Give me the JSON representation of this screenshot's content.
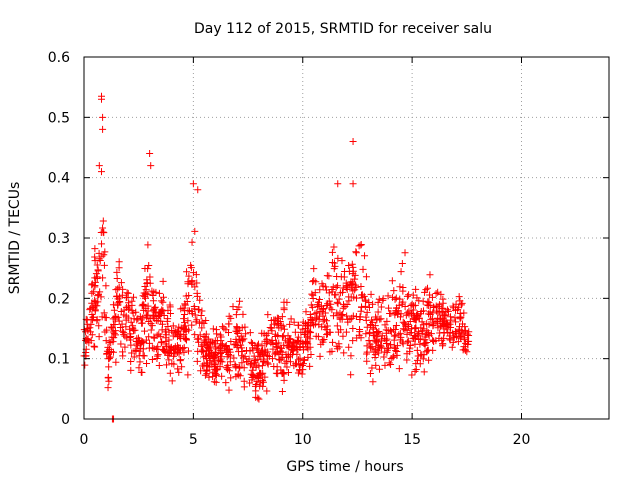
{
  "chart_data": {
    "type": "scatter",
    "title": "Day 112 of 2015, SRMTID for receiver salu",
    "xlabel": "GPS time / hours",
    "ylabel": "SRMTID / TECUs",
    "xlim": [
      0,
      24
    ],
    "ylim": [
      0,
      0.6
    ],
    "xticks": [
      0,
      5,
      10,
      15,
      20
    ],
    "xtick_labels": [
      "0",
      "5",
      "10",
      "15",
      "20"
    ],
    "yticks": [
      0,
      0.1,
      0.2,
      0.3,
      0.4,
      0.5,
      0.6
    ],
    "ytick_labels": [
      "0",
      "0.1",
      "0.2",
      "0.3",
      "0.4",
      "0.5",
      "0.6"
    ],
    "grid": true,
    "marker": "+",
    "marker_color": "#ff0000",
    "series": [
      {
        "name": "SRMTID",
        "x_range_hours": [
          0,
          17.6
        ],
        "envelope": [
          {
            "x": 0.0,
            "lo": 0.06,
            "hi": 0.18
          },
          {
            "x": 0.5,
            "lo": 0.08,
            "hi": 0.33
          },
          {
            "x": 0.9,
            "lo": 0.1,
            "hi": 0.42
          },
          {
            "x": 1.1,
            "lo": 0.03,
            "hi": 0.15
          },
          {
            "x": 1.5,
            "lo": 0.07,
            "hi": 0.3
          },
          {
            "x": 2.0,
            "lo": 0.08,
            "hi": 0.27
          },
          {
            "x": 2.5,
            "lo": 0.04,
            "hi": 0.2
          },
          {
            "x": 3.0,
            "lo": 0.03,
            "hi": 0.35
          },
          {
            "x": 3.5,
            "lo": 0.04,
            "hi": 0.26
          },
          {
            "x": 4.0,
            "lo": 0.06,
            "hi": 0.2
          },
          {
            "x": 4.5,
            "lo": 0.03,
            "hi": 0.22
          },
          {
            "x": 5.0,
            "lo": 0.07,
            "hi": 0.39
          },
          {
            "x": 5.4,
            "lo": 0.05,
            "hi": 0.2
          },
          {
            "x": 6.0,
            "lo": 0.04,
            "hi": 0.16
          },
          {
            "x": 7.0,
            "lo": 0.03,
            "hi": 0.22
          },
          {
            "x": 7.5,
            "lo": 0.02,
            "hi": 0.18
          },
          {
            "x": 8.0,
            "lo": 0.01,
            "hi": 0.14
          },
          {
            "x": 8.5,
            "lo": 0.04,
            "hi": 0.2
          },
          {
            "x": 9.0,
            "lo": 0.03,
            "hi": 0.21
          },
          {
            "x": 10.0,
            "lo": 0.04,
            "hi": 0.19
          },
          {
            "x": 10.5,
            "lo": 0.1,
            "hi": 0.27
          },
          {
            "x": 11.0,
            "lo": 0.09,
            "hi": 0.23
          },
          {
            "x": 11.6,
            "lo": 0.05,
            "hi": 0.38
          },
          {
            "x": 12.0,
            "lo": 0.03,
            "hi": 0.33
          },
          {
            "x": 12.5,
            "lo": 0.04,
            "hi": 0.39
          },
          {
            "x": 13.0,
            "lo": 0.03,
            "hi": 0.25
          },
          {
            "x": 13.5,
            "lo": 0.04,
            "hi": 0.24
          },
          {
            "x": 14.0,
            "lo": 0.05,
            "hi": 0.26
          },
          {
            "x": 14.6,
            "lo": 0.04,
            "hi": 0.33
          },
          {
            "x": 15.0,
            "lo": 0.06,
            "hi": 0.26
          },
          {
            "x": 15.5,
            "lo": 0.05,
            "hi": 0.23
          },
          {
            "x": 16.0,
            "lo": 0.07,
            "hi": 0.26
          },
          {
            "x": 16.5,
            "lo": 0.09,
            "hi": 0.23
          },
          {
            "x": 17.0,
            "lo": 0.08,
            "hi": 0.23
          },
          {
            "x": 17.6,
            "lo": 0.1,
            "hi": 0.17
          }
        ],
        "notable_points": [
          {
            "x": 0.8,
            "y": 0.535
          },
          {
            "x": 0.8,
            "y": 0.53
          },
          {
            "x": 0.85,
            "y": 0.5
          },
          {
            "x": 0.85,
            "y": 0.48
          },
          {
            "x": 0.7,
            "y": 0.42
          },
          {
            "x": 0.8,
            "y": 0.41
          },
          {
            "x": 1.3,
            "y": 0.0
          },
          {
            "x": 1.35,
            "y": 0.0
          },
          {
            "x": 3.0,
            "y": 0.44
          },
          {
            "x": 3.05,
            "y": 0.42
          },
          {
            "x": 5.0,
            "y": 0.39
          },
          {
            "x": 5.2,
            "y": 0.38
          },
          {
            "x": 12.3,
            "y": 0.46
          },
          {
            "x": 11.6,
            "y": 0.39
          },
          {
            "x": 12.3,
            "y": 0.39
          }
        ]
      }
    ]
  }
}
